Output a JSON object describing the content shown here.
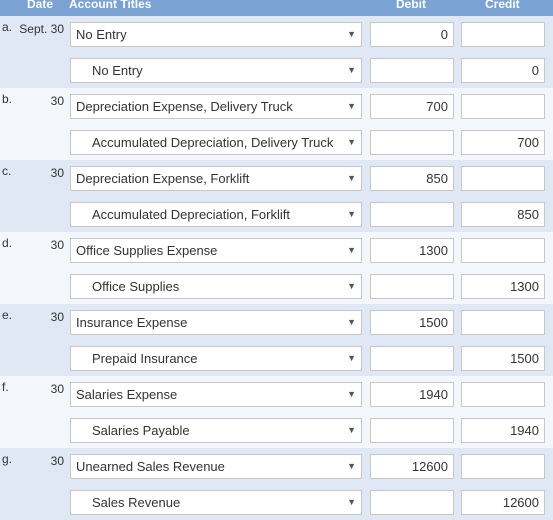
{
  "header": {
    "date": "Date",
    "account_titles": "Account Titles",
    "debit": "Debit",
    "credit": "Credit"
  },
  "entries": [
    {
      "letter": "a.",
      "date": "Sept. 30",
      "lines": [
        {
          "account": "No Entry",
          "debit": "0",
          "credit": ""
        },
        {
          "account": "No Entry",
          "debit": "",
          "credit": "0"
        }
      ]
    },
    {
      "letter": "b.",
      "date": "30",
      "lines": [
        {
          "account": "Depreciation Expense, Delivery Truck",
          "debit": "700",
          "credit": ""
        },
        {
          "account": "Accumulated Depreciation, Delivery Truck",
          "debit": "",
          "credit": "700"
        }
      ]
    },
    {
      "letter": "c.",
      "date": "30",
      "lines": [
        {
          "account": "Depreciation Expense, Forklift",
          "debit": "850",
          "credit": ""
        },
        {
          "account": "Accumulated Depreciation, Forklift",
          "debit": "",
          "credit": "850"
        }
      ]
    },
    {
      "letter": "d.",
      "date": "30",
      "lines": [
        {
          "account": "Office Supplies Expense",
          "debit": "1300",
          "credit": ""
        },
        {
          "account": "Office Supplies",
          "debit": "",
          "credit": "1300"
        }
      ]
    },
    {
      "letter": "e.",
      "date": "30",
      "lines": [
        {
          "account": "Insurance Expense",
          "debit": "1500",
          "credit": ""
        },
        {
          "account": "Prepaid Insurance",
          "debit": "",
          "credit": "1500"
        }
      ]
    },
    {
      "letter": "f.",
      "date": "30",
      "lines": [
        {
          "account": "Salaries Expense",
          "debit": "1940",
          "credit": ""
        },
        {
          "account": "Salaries Payable",
          "debit": "",
          "credit": "1940"
        }
      ]
    },
    {
      "letter": "g.",
      "date": "30",
      "lines": [
        {
          "account": "Unearned Sales Revenue",
          "debit": "12600",
          "credit": ""
        },
        {
          "account": "Sales Revenue",
          "debit": "",
          "credit": "12600"
        }
      ]
    }
  ],
  "icons": {
    "dropdown": "chevron-down-icon"
  },
  "colors": {
    "header": "#7aa3d4",
    "row_shade": "#dfe8f4",
    "row_plain": "#f3f6fa"
  }
}
